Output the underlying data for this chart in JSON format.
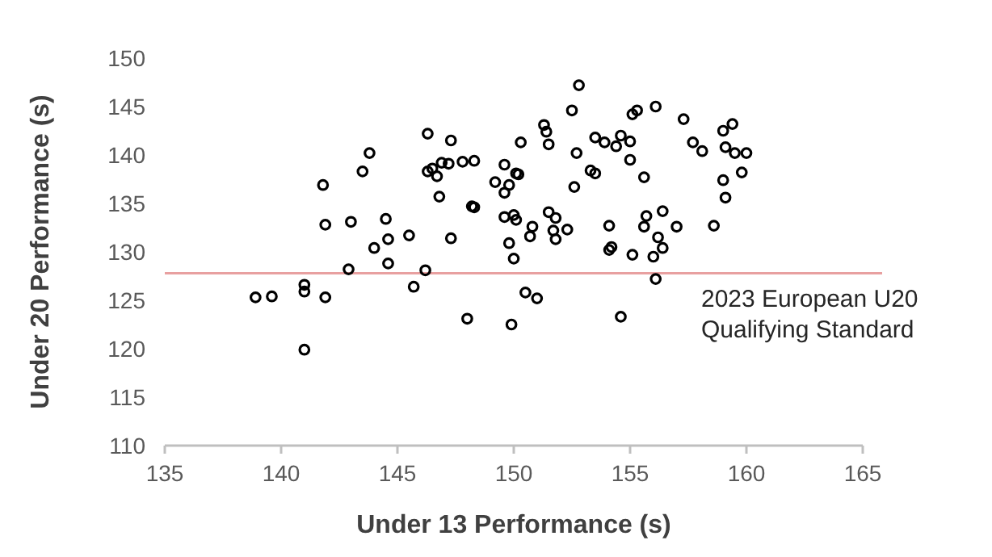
{
  "chart_data": {
    "type": "scatter",
    "xlabel": "Under 13 Performance (s)",
    "ylabel": "Under 20 Performance (s)",
    "xlim": [
      135,
      165
    ],
    "xticks": [
      135,
      140,
      145,
      150,
      155,
      160,
      165
    ],
    "ylim": [
      110,
      150
    ],
    "yticks": [
      110,
      115,
      120,
      125,
      130,
      135,
      140,
      145,
      150
    ],
    "grid": false,
    "marker": "circle",
    "ref_lines": [
      {
        "axis": "y",
        "value": 127.8,
        "label": "2023 European U20 Qualifying Standard",
        "color": "#e8a0a0"
      }
    ],
    "series": [
      {
        "color": "#000000",
        "x": [
          146.3,
          147.3,
          143.8,
          143.5,
          146.3,
          146.5,
          146.7,
          146.9,
          147.2,
          141.8,
          146.8,
          141.9,
          143.0,
          144.5,
          144.6,
          145.5,
          147.3,
          144.0,
          144.6,
          142.9,
          146.2,
          145.7,
          141.0,
          141.0,
          138.9,
          139.6,
          141.9,
          141.0,
          152.8,
          152.5,
          151.3,
          151.4,
          151.5,
          150.3,
          147.8,
          148.3,
          149.6,
          149.2,
          149.8,
          149.6,
          150.1,
          150.2,
          148.2,
          148.3,
          149.6,
          150.0,
          150.1,
          149.8,
          150.0,
          150.8,
          150.7,
          151.5,
          151.8,
          151.7,
          151.8,
          152.3,
          152.7,
          152.6,
          153.5,
          153.9,
          154.4,
          154.6,
          155.0,
          155.0,
          153.3,
          153.5,
          155.1,
          155.3,
          156.1,
          157.3,
          157.7,
          155.6,
          154.1,
          155.7,
          156.4,
          155.6,
          157.0,
          156.2,
          156.4,
          156.0,
          154.1,
          154.2,
          155.1,
          156.1,
          150.5,
          151.0,
          148.0,
          149.9,
          154.6,
          158.1,
          159.0,
          159.4,
          159.1,
          159.5,
          160.0,
          159.8,
          159.0,
          159.1,
          158.6
        ],
        "values": [
          142.2,
          141.5,
          140.2,
          138.3,
          138.3,
          138.6,
          137.8,
          139.2,
          139.1,
          136.9,
          135.7,
          132.8,
          133.1,
          133.4,
          131.3,
          131.7,
          131.4,
          130.4,
          128.8,
          128.2,
          128.1,
          126.4,
          126.6,
          125.9,
          125.3,
          125.4,
          125.3,
          119.9,
          147.2,
          144.6,
          143.1,
          142.4,
          141.1,
          141.3,
          139.3,
          139.4,
          139.0,
          137.2,
          136.9,
          136.1,
          138.1,
          138.0,
          134.7,
          134.6,
          133.6,
          133.8,
          133.3,
          130.9,
          129.3,
          132.6,
          131.6,
          134.1,
          133.5,
          132.2,
          131.3,
          132.3,
          140.2,
          136.7,
          141.8,
          141.3,
          140.9,
          142.0,
          141.4,
          139.5,
          138.4,
          138.1,
          144.2,
          144.6,
          145.0,
          143.7,
          141.3,
          137.7,
          132.7,
          133.7,
          134.2,
          132.6,
          132.6,
          131.5,
          130.4,
          129.5,
          130.2,
          130.5,
          129.7,
          127.2,
          125.8,
          125.2,
          123.1,
          122.5,
          123.3,
          140.4,
          142.5,
          143.2,
          140.8,
          140.2,
          140.2,
          138.2,
          137.4,
          135.6,
          132.7
        ]
      }
    ]
  }
}
